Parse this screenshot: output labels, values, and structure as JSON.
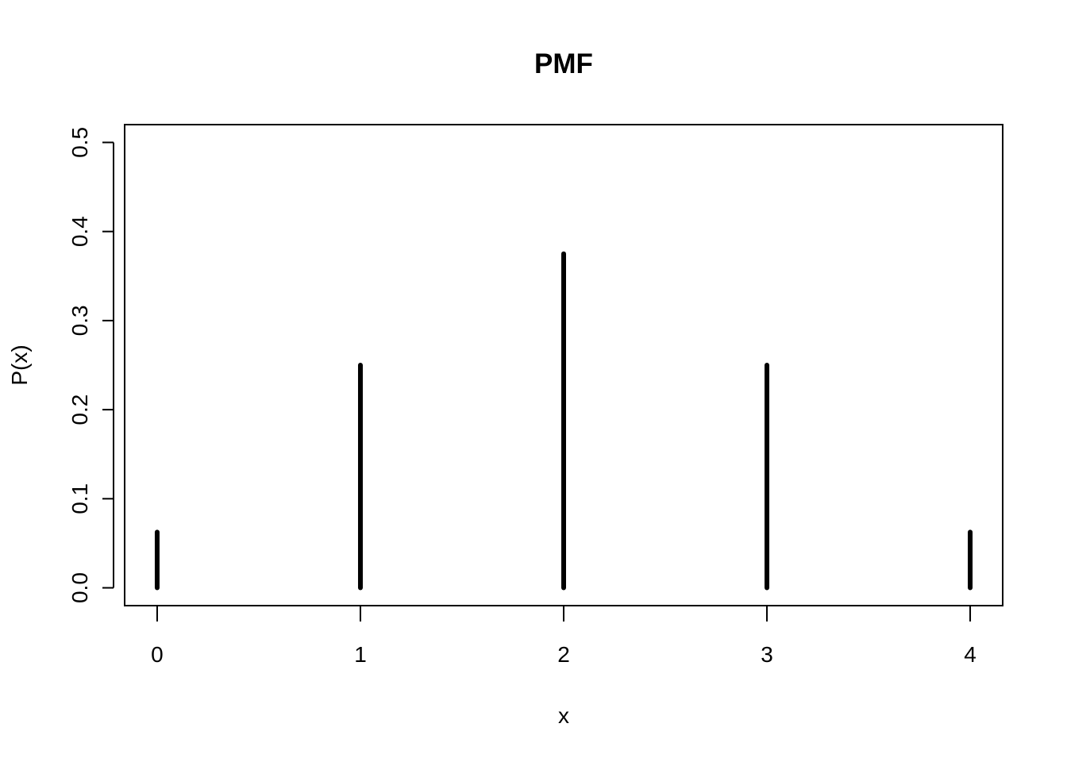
{
  "chart_data": {
    "type": "bar",
    "title": "PMF",
    "xlabel": "x",
    "ylabel": "P(x)",
    "x": [
      0,
      1,
      2,
      3,
      4
    ],
    "values": [
      0.0625,
      0.25,
      0.375,
      0.25,
      0.0625
    ],
    "xticks": [
      "0",
      "1",
      "2",
      "3",
      "4"
    ],
    "yticks": [
      "0.0",
      "0.1",
      "0.2",
      "0.3",
      "0.4",
      "0.5"
    ],
    "xlim": [
      -0.16,
      4.16
    ],
    "ylim": [
      -0.02,
      0.52
    ],
    "grid": false,
    "legend": "none"
  }
}
